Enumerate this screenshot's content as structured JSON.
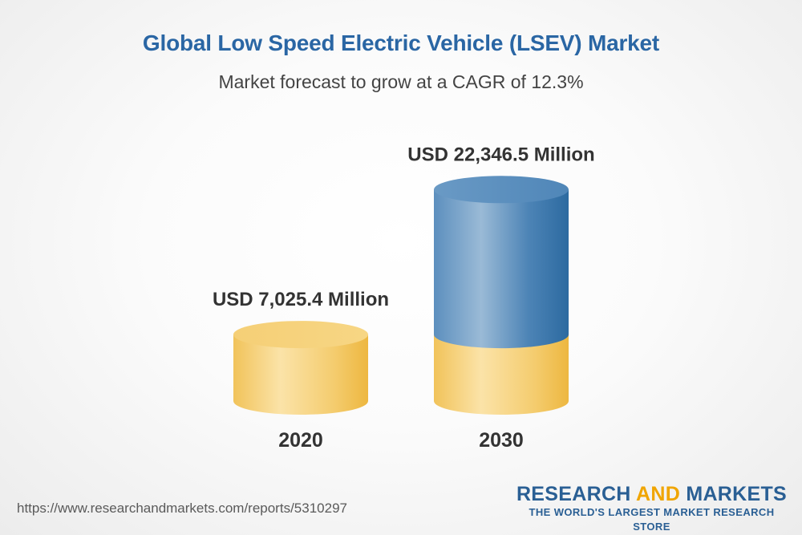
{
  "chart_data": {
    "type": "bar",
    "title": "Global Low Speed Electric Vehicle (LSEV) Market",
    "subtitle": "Market forecast to grow at a CAGR of 12.3%",
    "categories": [
      "2020",
      "2030"
    ],
    "values": [
      7025.4,
      22346.5
    ],
    "value_labels": [
      "USD 7,025.4 Million",
      "USD 22,346.5 Million"
    ],
    "unit": "USD Million",
    "xlabel": "",
    "ylabel": "",
    "grid": false,
    "legend": "none",
    "colors": {
      "base": "#f0c257",
      "growth": "#4f88b8"
    }
  },
  "footer": {
    "source_url": "https://www.researchandmarkets.com/reports/5310297",
    "brand_part1": "RESEARCH",
    "brand_part2": "AND",
    "brand_part3": "MARKETS",
    "tagline": "THE WORLD'S LARGEST MARKET RESEARCH STORE"
  }
}
